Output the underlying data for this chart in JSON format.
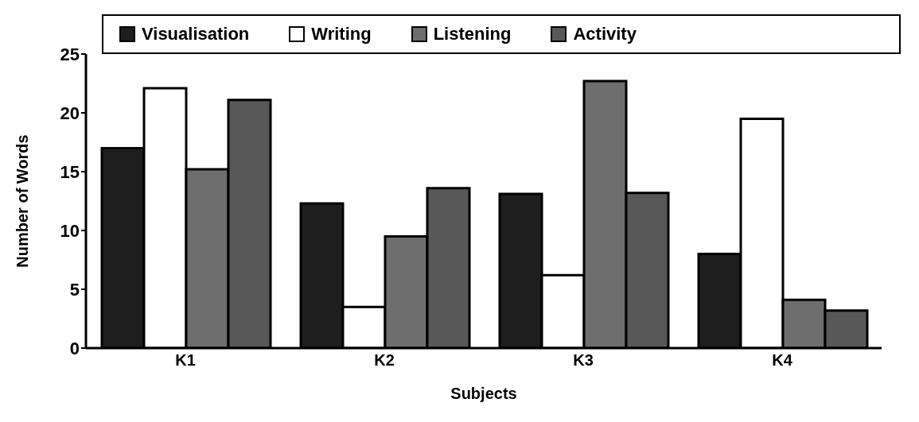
{
  "chart_data": {
    "type": "bar",
    "xlabel": "Subjects",
    "ylabel": "Number of Words",
    "categories": [
      "K1",
      "K2",
      "K3",
      "K4"
    ],
    "series": [
      {
        "name": "Visualisation",
        "color": "#1e1e1e",
        "values": [
          17,
          12.3,
          13.1,
          8
        ]
      },
      {
        "name": "Writing",
        "color": "#ffffff",
        "values": [
          22.1,
          3.5,
          6.2,
          19.5
        ]
      },
      {
        "name": "Listening",
        "color": "#6e6e6e",
        "values": [
          15.2,
          9.5,
          22.7,
          4.1
        ]
      },
      {
        "name": "Activity",
        "color": "#585858",
        "values": [
          21.1,
          13.6,
          13.2,
          3.2
        ]
      }
    ],
    "ylim": [
      0,
      25
    ],
    "yticks": [
      0,
      5,
      10,
      15,
      20,
      25
    ],
    "grid": false,
    "legend": "top"
  }
}
